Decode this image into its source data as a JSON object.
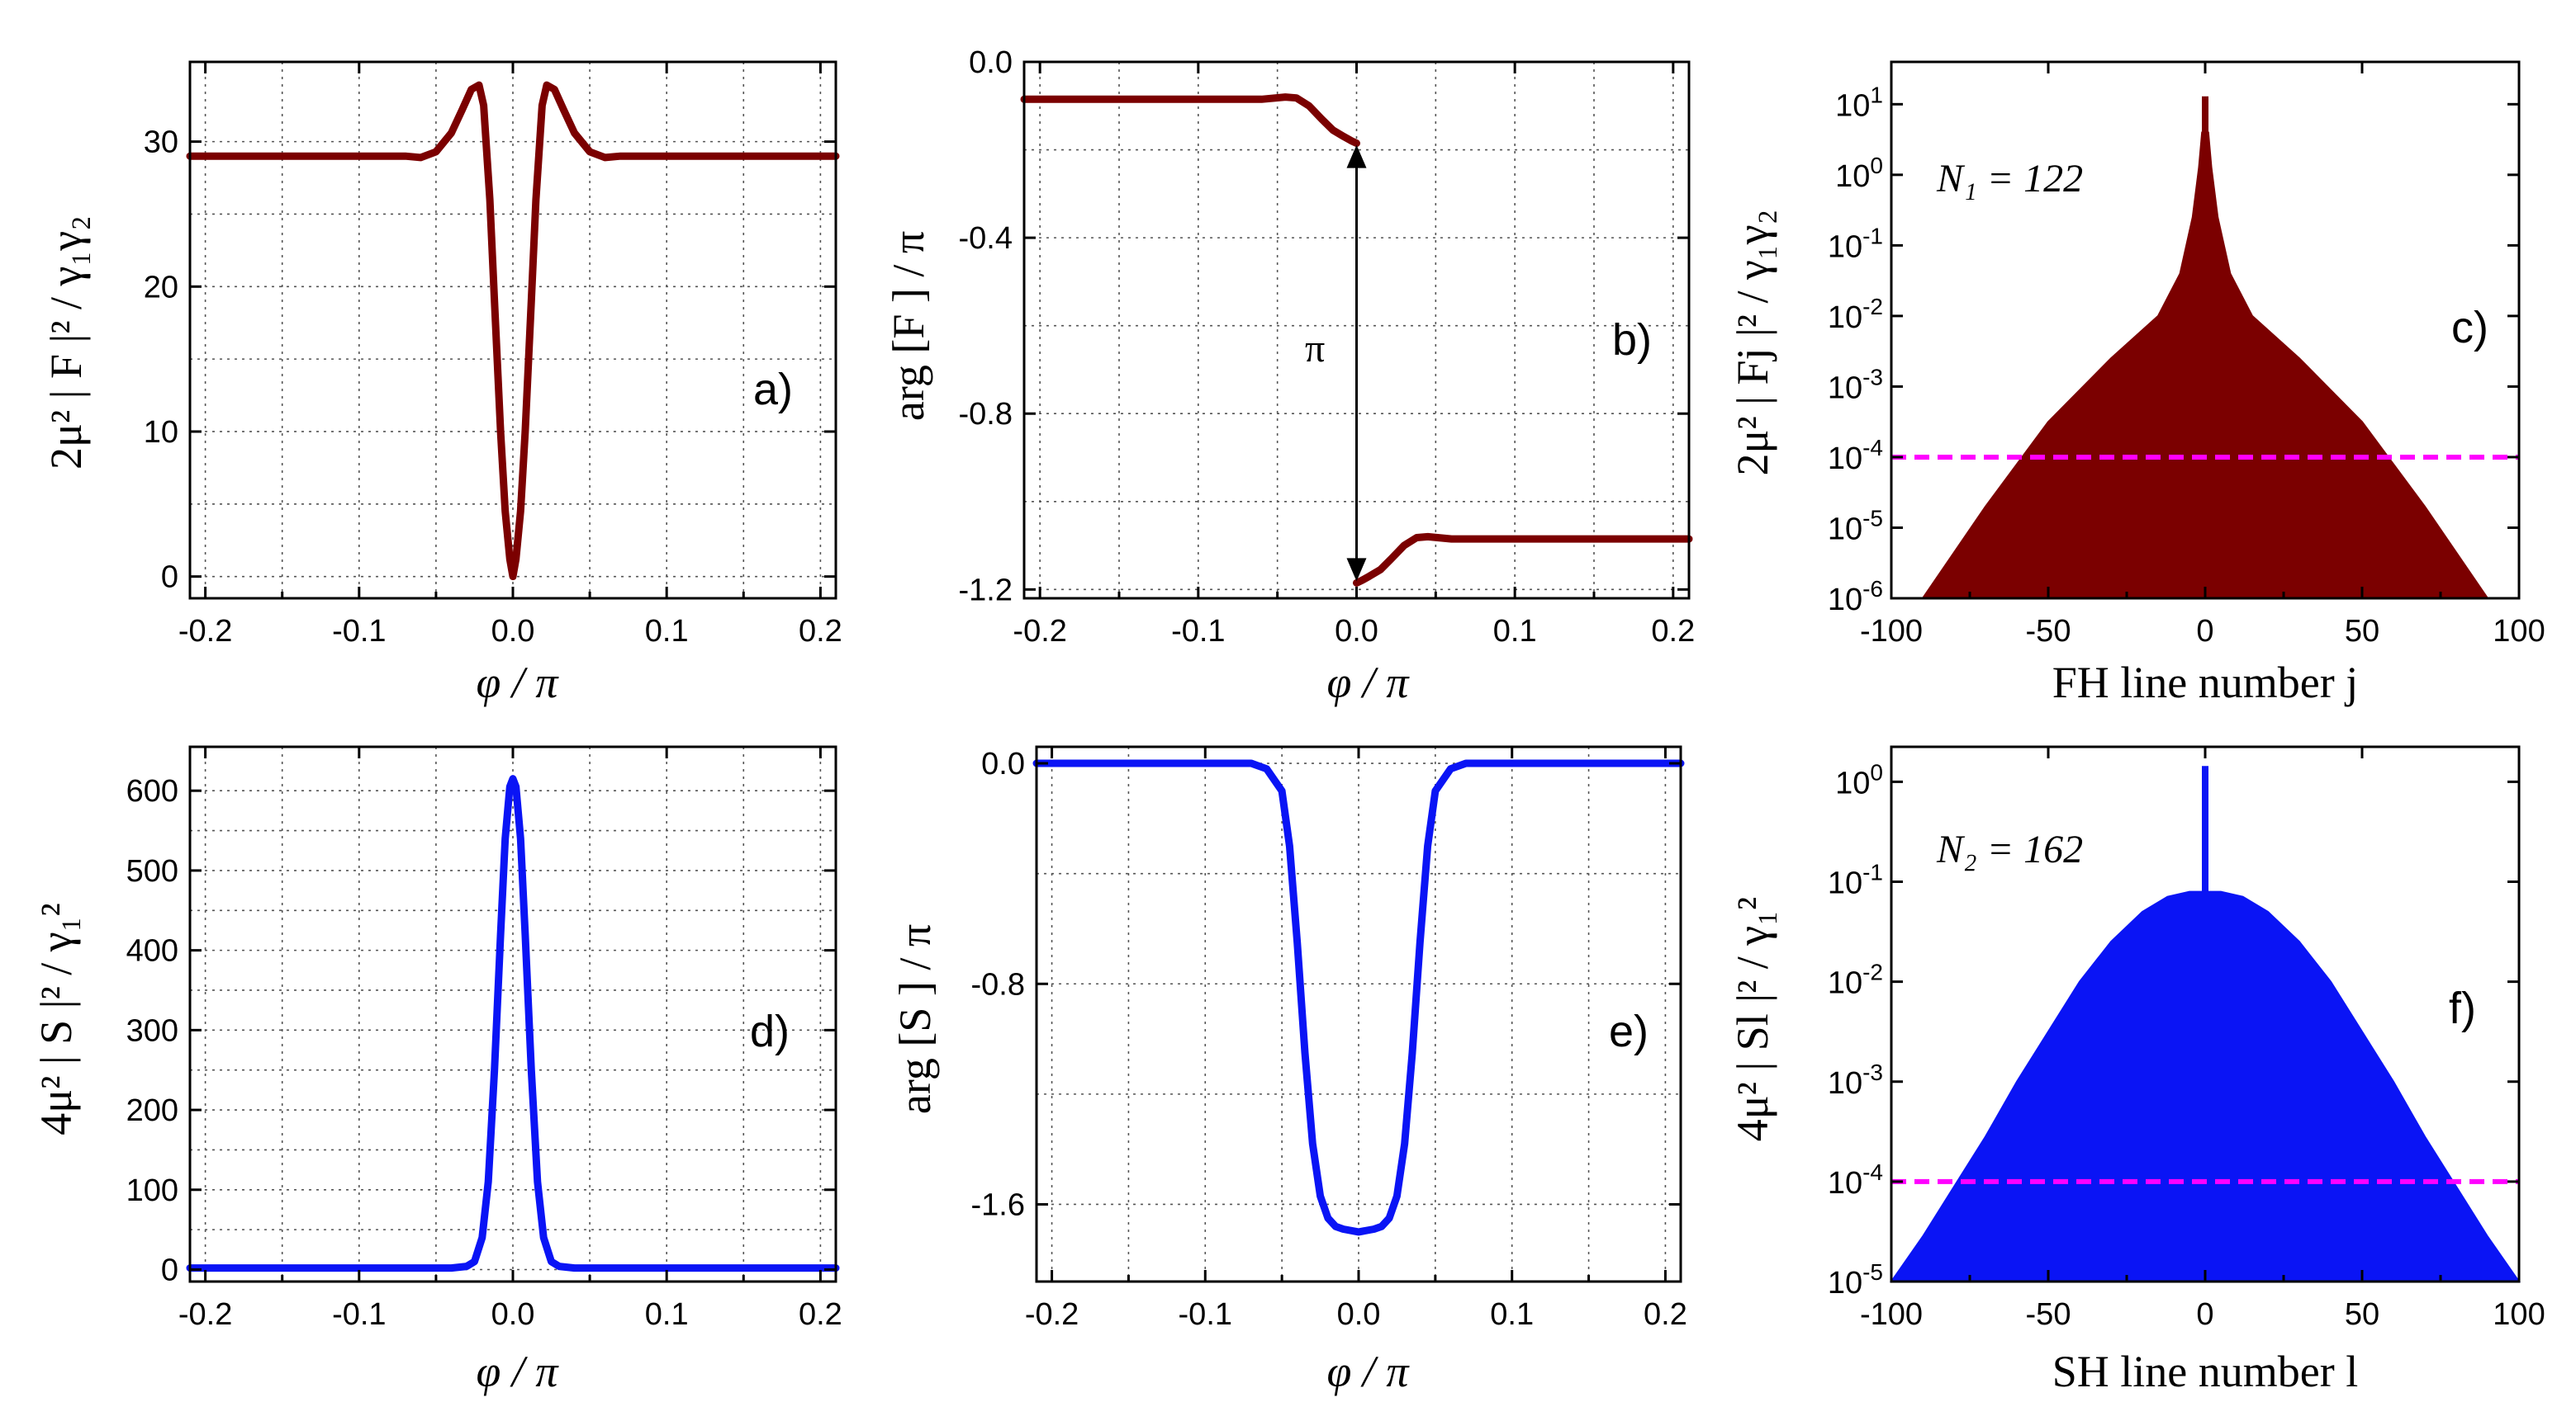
{
  "colors": {
    "fh": "#7b0000",
    "sh": "#0a14f5",
    "threshold": "#ff00ff",
    "axis": "#000000"
  },
  "chart_data": [
    {
      "id": "a",
      "type": "line",
      "panel_label": "a)",
      "xlabel": "φ / π",
      "ylabel": "2μ² | F |² / γ₁γ₂",
      "xlim": [
        -0.21,
        0.21
      ],
      "ylim": [
        -1.5,
        35.5
      ],
      "xticks": [
        -0.2,
        -0.1,
        0.0,
        0.1,
        0.2
      ],
      "xtick_labels": [
        "-0.2",
        "-0.1",
        "0.0",
        "0.1",
        "0.2"
      ],
      "yticks": [
        0,
        10,
        20,
        30
      ],
      "ytick_labels": [
        "0",
        "10",
        "20",
        "30"
      ],
      "grid": true,
      "color": "fh",
      "x": [
        -0.21,
        -0.1,
        -0.07,
        -0.06,
        -0.05,
        -0.04,
        -0.033,
        -0.027,
        -0.022,
        -0.019,
        -0.015,
        -0.012,
        -0.008,
        -0.005,
        -0.002,
        0.0,
        0.002,
        0.005,
        0.008,
        0.012,
        0.015,
        0.019,
        0.022,
        0.027,
        0.033,
        0.04,
        0.05,
        0.06,
        0.07,
        0.1,
        0.21
      ],
      "y": [
        29,
        29,
        29,
        28.9,
        29.3,
        30.6,
        32.2,
        33.6,
        33.9,
        32.5,
        26,
        19,
        10,
        4.5,
        1.2,
        0,
        1.2,
        4.5,
        10,
        19,
        26,
        32.5,
        33.9,
        33.6,
        32.2,
        30.6,
        29.3,
        28.9,
        29,
        29,
        29
      ]
    },
    {
      "id": "b",
      "type": "line",
      "panel_label": "b)",
      "xlabel": "φ / π",
      "ylabel": "arg [F ] / π",
      "annotation": "π",
      "xlim": [
        -0.21,
        0.21
      ],
      "ylim": [
        -1.22,
        0.0
      ],
      "xticks": [
        -0.2,
        -0.1,
        0.0,
        0.1,
        0.2
      ],
      "xtick_labels": [
        "-0.2",
        "-0.1",
        "0.0",
        "0.1",
        "0.2"
      ],
      "yticks": [
        0.0,
        -0.4,
        -0.8,
        -1.2
      ],
      "ytick_labels": [
        "0.0",
        "-0.4",
        "-0.8",
        "-1.2"
      ],
      "grid": true,
      "color": "fh",
      "segments": [
        {
          "x": [
            -0.21,
            -0.06,
            -0.045,
            -0.038,
            -0.03,
            -0.022,
            -0.015,
            -0.008,
            -0.003,
            0.0
          ],
          "y": [
            -0.085,
            -0.085,
            -0.08,
            -0.082,
            -0.1,
            -0.13,
            -0.155,
            -0.17,
            -0.18,
            -0.185
          ]
        },
        {
          "x": [
            0.0,
            0.003,
            0.008,
            0.015,
            0.022,
            0.03,
            0.038,
            0.045,
            0.06,
            0.21
          ],
          "y": [
            -1.185,
            -1.18,
            -1.17,
            -1.155,
            -1.13,
            -1.1,
            -1.082,
            -1.08,
            -1.085,
            -1.085
          ]
        }
      ],
      "arrow": {
        "x": 0.0,
        "y_from": -0.185,
        "y_to": -1.185
      }
    },
    {
      "id": "c",
      "type": "bar",
      "panel_label": "c)",
      "xlabel": "FH line number j",
      "ylabel": "2μ² | Fj |² / γ₁γ₂",
      "annotation": "N₁ = 122",
      "scale": "log",
      "xlim": [
        -100,
        100
      ],
      "ylim_exp": [
        -6,
        1.6
      ],
      "xticks": [
        -100,
        -50,
        0,
        50,
        100
      ],
      "xtick_labels": [
        "-100",
        "-50",
        "0",
        "50",
        "100"
      ],
      "yticks_exp": [
        -6,
        -5,
        -4,
        -3,
        -2,
        -1,
        0,
        1
      ],
      "ytick_labels": [
        "10-6",
        "10-5",
        "10-4",
        "10-3",
        "10-2",
        "10-1",
        "100",
        "101"
      ],
      "grid": false,
      "color": "fh",
      "envelope": {
        "j": [
          -100,
          -90,
          -70,
          -50,
          -30,
          -15,
          -8,
          -4,
          -2,
          -1,
          0,
          1,
          2,
          4,
          8,
          15,
          30,
          50,
          70,
          90,
          100
        ],
        "log10": [
          -6.2,
          -6.0,
          -4.7,
          -3.5,
          -2.6,
          -2.0,
          -1.4,
          -0.6,
          0.1,
          0.6,
          1.1,
          0.6,
          0.1,
          -0.6,
          -1.4,
          -2.0,
          -2.6,
          -3.5,
          -4.7,
          -6.0,
          -6.2
        ]
      },
      "threshold": 0.0001
    },
    {
      "id": "d",
      "type": "line",
      "panel_label": "d)",
      "xlabel": "φ / π",
      "ylabel": "4μ² | S |² / γ₁²",
      "xlim": [
        -0.21,
        0.21
      ],
      "ylim": [
        -15,
        655
      ],
      "xticks": [
        -0.2,
        -0.1,
        0.0,
        0.1,
        0.2
      ],
      "xtick_labels": [
        "-0.2",
        "-0.1",
        "0.0",
        "0.1",
        "0.2"
      ],
      "yticks": [
        0,
        100,
        200,
        300,
        400,
        500,
        600
      ],
      "ytick_labels": [
        "0",
        "100",
        "200",
        "300",
        "400",
        "500",
        "600"
      ],
      "grid": true,
      "color": "sh",
      "x": [
        -0.21,
        -0.04,
        -0.03,
        -0.025,
        -0.02,
        -0.016,
        -0.012,
        -0.008,
        -0.005,
        -0.002,
        0.0,
        0.002,
        0.005,
        0.008,
        0.012,
        0.016,
        0.02,
        0.025,
        0.03,
        0.04,
        0.21
      ],
      "y": [
        2,
        2,
        4,
        10,
        40,
        110,
        250,
        420,
        540,
        605,
        615,
        605,
        540,
        420,
        250,
        110,
        40,
        10,
        4,
        2,
        2
      ]
    },
    {
      "id": "e",
      "type": "line",
      "panel_label": "e)",
      "xlabel": "φ / π",
      "ylabel": "arg [S ] / π",
      "xlim": [
        -0.21,
        0.21
      ],
      "ylim": [
        -1.88,
        0.06
      ],
      "xticks": [
        -0.2,
        -0.1,
        0.0,
        0.1,
        0.2
      ],
      "xtick_labels": [
        "-0.2",
        "-0.1",
        "0.0",
        "0.1",
        "0.2"
      ],
      "yticks": [
        0.0,
        -0.8,
        -1.6
      ],
      "ytick_labels": [
        "0.0",
        "-0.8",
        "-1.6"
      ],
      "grid": true,
      "color": "sh",
      "x": [
        -0.21,
        -0.1,
        -0.07,
        -0.06,
        -0.05,
        -0.045,
        -0.04,
        -0.035,
        -0.03,
        -0.025,
        -0.02,
        -0.015,
        -0.01,
        0.0,
        0.01,
        0.015,
        0.02,
        0.025,
        0.03,
        0.035,
        0.04,
        0.045,
        0.05,
        0.06,
        0.07,
        0.1,
        0.21
      ],
      "y": [
        0.0,
        0.0,
        0.0,
        -0.02,
        -0.1,
        -0.3,
        -0.65,
        -1.05,
        -1.38,
        -1.57,
        -1.65,
        -1.68,
        -1.69,
        -1.7,
        -1.69,
        -1.68,
        -1.65,
        -1.57,
        -1.38,
        -1.05,
        -0.65,
        -0.3,
        -0.1,
        -0.02,
        0.0,
        0.0,
        0.0
      ]
    },
    {
      "id": "f",
      "type": "bar",
      "panel_label": "f)",
      "xlabel": "SH line number l",
      "ylabel": "4μ² | Sl |² / γ₁²",
      "annotation": "N₂ = 162",
      "scale": "log",
      "xlim": [
        -100,
        100
      ],
      "ylim_exp": [
        -5,
        0.35
      ],
      "xticks": [
        -100,
        -50,
        0,
        50,
        100
      ],
      "xtick_labels": [
        "-100",
        "-50",
        "0",
        "50",
        "100"
      ],
      "yticks_exp": [
        -5,
        -4,
        -3,
        -2,
        -1,
        0
      ],
      "ytick_labels": [
        "10-5",
        "10-4",
        "10-3",
        "10-2",
        "10-1",
        "100"
      ],
      "grid": false,
      "color": "sh",
      "envelope": {
        "l": [
          -100,
          -90,
          -80,
          -70,
          -60,
          -50,
          -40,
          -30,
          -20,
          -12,
          -5,
          -1,
          0,
          1,
          5,
          12,
          20,
          30,
          40,
          50,
          60,
          70,
          80,
          90,
          100
        ],
        "log10": [
          -5.0,
          -4.55,
          -4.05,
          -3.55,
          -3.0,
          -2.5,
          -2.0,
          -1.6,
          -1.3,
          -1.15,
          -1.1,
          -1.1,
          0.15,
          -1.1,
          -1.1,
          -1.15,
          -1.3,
          -1.6,
          -2.0,
          -2.5,
          -3.0,
          -3.55,
          -4.05,
          -4.55,
          -5.0
        ]
      },
      "threshold": 0.0001
    }
  ]
}
